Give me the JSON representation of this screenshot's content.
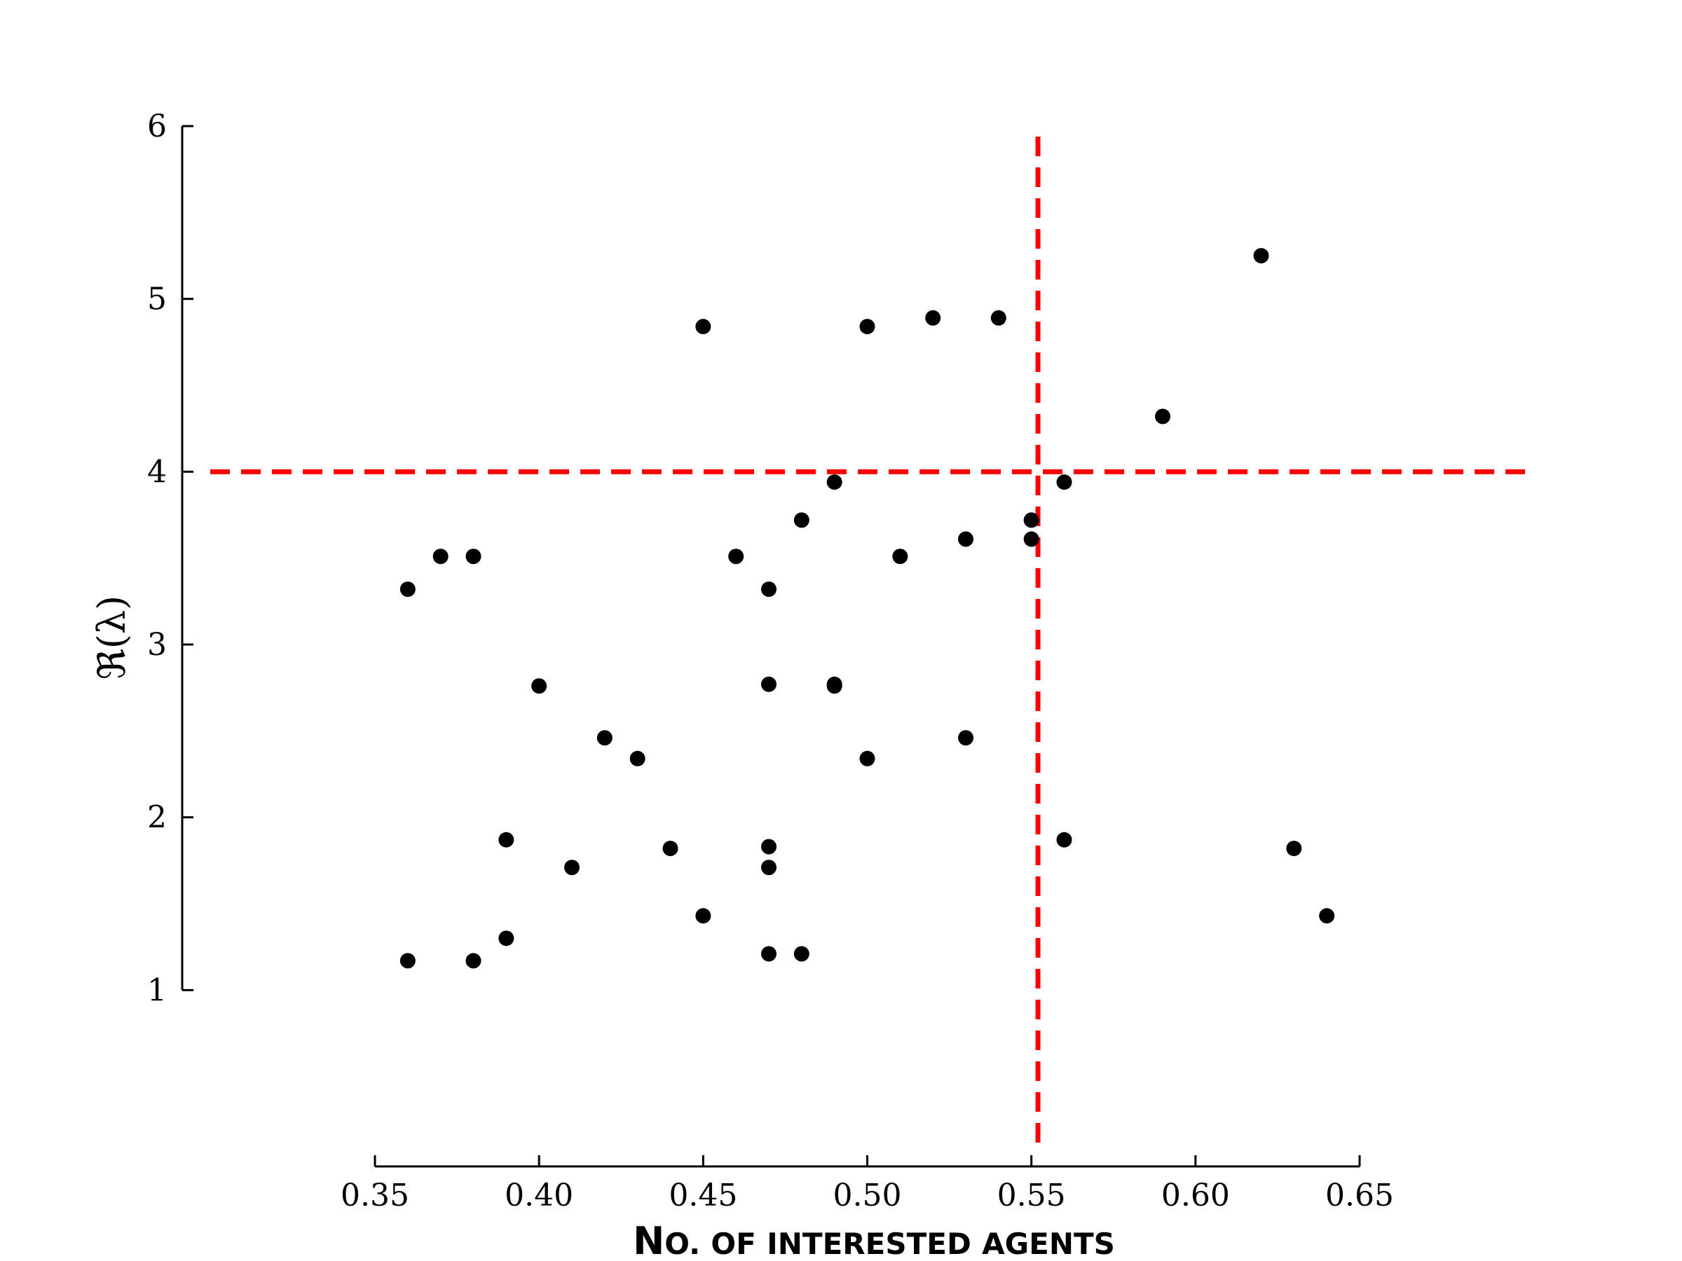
{
  "chart_data": {
    "type": "scatter",
    "xlabel": "No. of interested agents",
    "ylabel": "ℜ(λ)",
    "xlim": [
      0.35,
      0.65
    ],
    "ylim": [
      0,
      6
    ],
    "xticks": [
      "0.35",
      "0.40",
      "0.45",
      "0.50",
      "0.55",
      "0.60",
      "0.65"
    ],
    "yticks": [
      "1",
      "2",
      "3",
      "4",
      "5",
      "6"
    ],
    "grid": false,
    "legend": "none",
    "marker_color": "#000000",
    "threshold_color": "#ff0000",
    "thresholds": {
      "x": 0.552,
      "y": 4.0
    },
    "points": [
      {
        "x": 0.36,
        "y": 3.32
      },
      {
        "x": 0.36,
        "y": 1.17
      },
      {
        "x": 0.37,
        "y": 3.51
      },
      {
        "x": 0.38,
        "y": 3.51
      },
      {
        "x": 0.38,
        "y": 1.17
      },
      {
        "x": 0.39,
        "y": 1.87
      },
      {
        "x": 0.39,
        "y": 1.3
      },
      {
        "x": 0.4,
        "y": 2.76
      },
      {
        "x": 0.41,
        "y": 1.71
      },
      {
        "x": 0.42,
        "y": 2.46
      },
      {
        "x": 0.43,
        "y": 2.34
      },
      {
        "x": 0.44,
        "y": 1.82
      },
      {
        "x": 0.45,
        "y": 4.84
      },
      {
        "x": 0.45,
        "y": 1.43
      },
      {
        "x": 0.46,
        "y": 3.51
      },
      {
        "x": 0.47,
        "y": 3.32
      },
      {
        "x": 0.47,
        "y": 2.77
      },
      {
        "x": 0.47,
        "y": 1.83
      },
      {
        "x": 0.47,
        "y": 1.71
      },
      {
        "x": 0.47,
        "y": 1.21
      },
      {
        "x": 0.48,
        "y": 3.72
      },
      {
        "x": 0.48,
        "y": 1.21
      },
      {
        "x": 0.49,
        "y": 3.94
      },
      {
        "x": 0.49,
        "y": 2.77
      },
      {
        "x": 0.49,
        "y": 2.76
      },
      {
        "x": 0.5,
        "y": 4.84
      },
      {
        "x": 0.5,
        "y": 2.34
      },
      {
        "x": 0.51,
        "y": 3.51
      },
      {
        "x": 0.52,
        "y": 4.89
      },
      {
        "x": 0.53,
        "y": 3.61
      },
      {
        "x": 0.53,
        "y": 2.46
      },
      {
        "x": 0.54,
        "y": 4.89
      },
      {
        "x": 0.55,
        "y": 3.72
      },
      {
        "x": 0.55,
        "y": 3.61
      },
      {
        "x": 0.56,
        "y": 3.94
      },
      {
        "x": 0.56,
        "y": 1.87
      },
      {
        "x": 0.59,
        "y": 4.32
      },
      {
        "x": 0.62,
        "y": 5.25
      },
      {
        "x": 0.63,
        "y": 1.82
      },
      {
        "x": 0.64,
        "y": 1.43
      }
    ]
  }
}
